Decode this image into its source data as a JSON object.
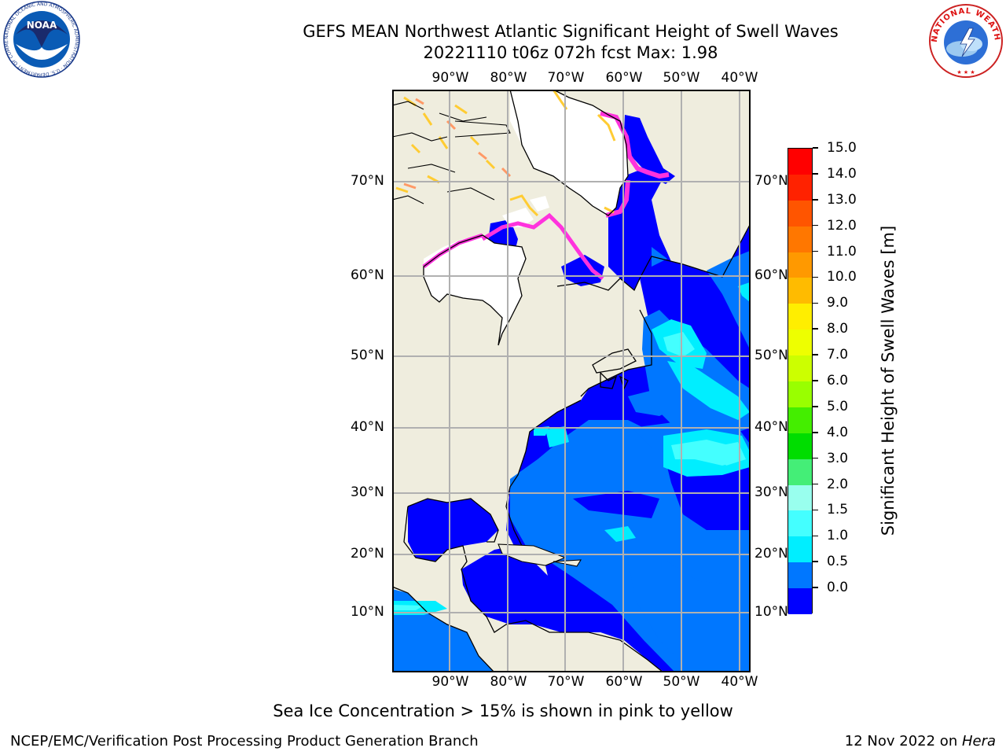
{
  "header": {
    "title_line1": "GEFS MEAN Northwest Atlantic Significant Height of Swell Waves",
    "title_line2": "20221110 t06z 072h fcst   Max: 1.98"
  },
  "logos": {
    "noaa": {
      "center_text": "NOAA",
      "ring_text": "NATIONAL OCEANIC AND ATMOSPHERIC ADMINISTRATION · U.S. DEPARTMENT OF COMMERCE"
    },
    "nws": {
      "ring_text": "NATIONAL WEATHER SERVICE"
    }
  },
  "map": {
    "lon_labels": [
      "90°W",
      "80°W",
      "70°W",
      "60°W",
      "50°W",
      "40°W"
    ],
    "lat_labels": [
      "70°N",
      "60°N",
      "50°N",
      "40°N",
      "30°N",
      "20°N",
      "10°N"
    ],
    "colors": {
      "land": "#efedde",
      "ice": "#ffffff",
      "coast": "#000000",
      "grid": "#b0b0b0",
      "ice_edge_pink": "#ff33dd",
      "ice_edge_yellow": "#ffcc33"
    }
  },
  "colorbar": {
    "label": "Significant Height of Swell Waves [m]",
    "ticks": [
      "15.0",
      "14.0",
      "13.0",
      "12.0",
      "11.0",
      "10.0",
      "9.0",
      "8.0",
      "7.0",
      "6.0",
      "5.0",
      "4.0",
      "3.0",
      "2.0",
      "1.5",
      "1.0",
      "0.5",
      "0.0"
    ],
    "colors_top_to_bottom": [
      "#ff0000",
      "#ff2200",
      "#ff5500",
      "#ff7700",
      "#ff9900",
      "#ffbb00",
      "#ffee00",
      "#eeff00",
      "#ccff00",
      "#99ff00",
      "#44ee00",
      "#00dd00",
      "#44ee77",
      "#99ffee",
      "#44ffff",
      "#00eeff",
      "#0077ff",
      "#0000ff"
    ]
  },
  "note": "Sea Ice Concentration > 15% is shown in pink to yellow",
  "footer": {
    "left": "NCEP/EMC/Verification Post Processing Product Generation Branch",
    "right_prefix": "12 Nov 2022 on ",
    "right_host": "Hera"
  }
}
